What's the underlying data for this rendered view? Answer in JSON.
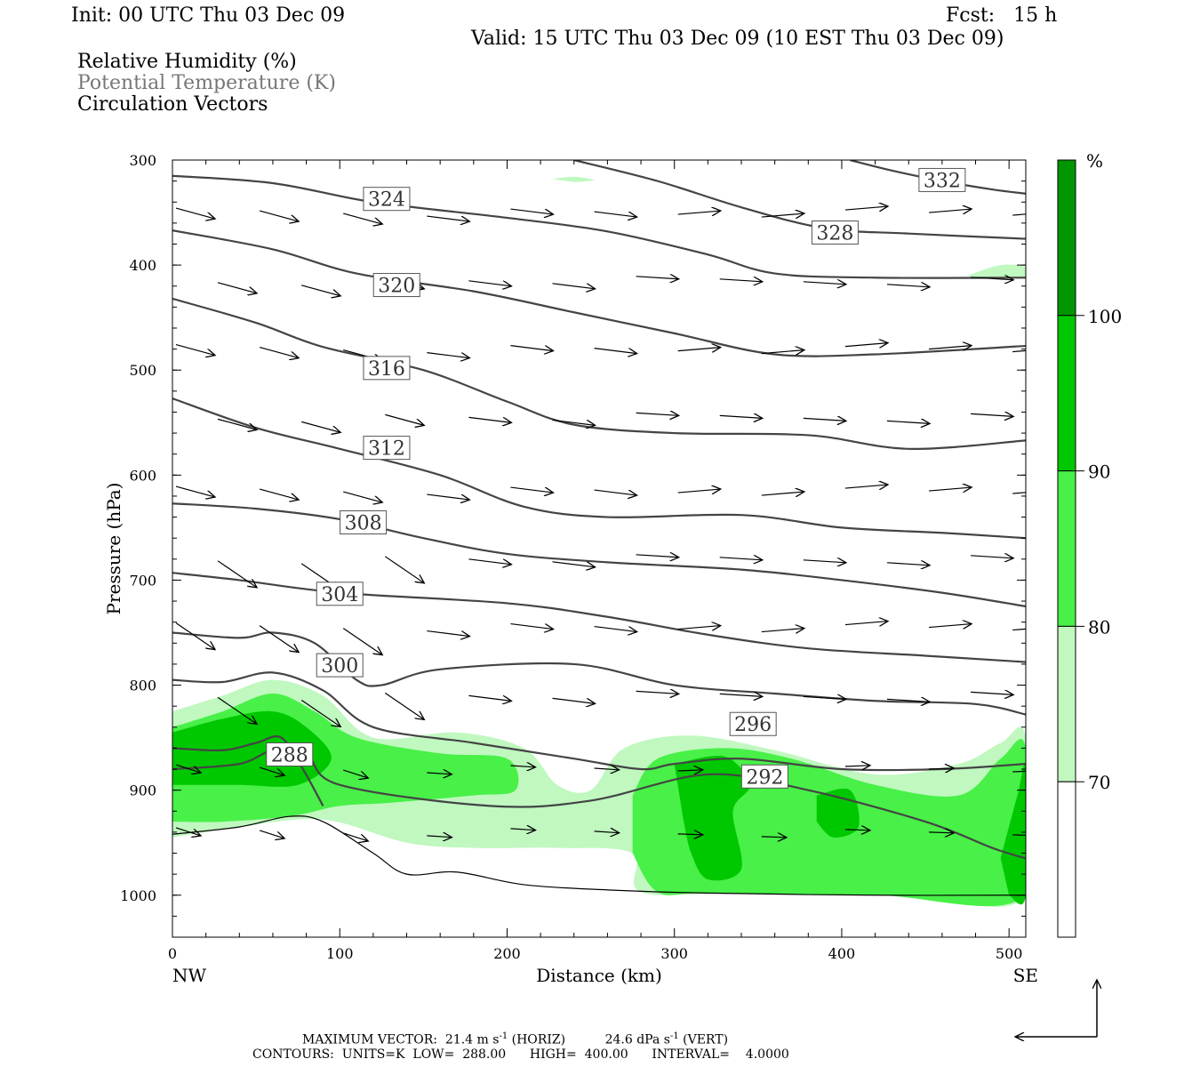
{
  "header": {
    "init": "Init: 00 UTC Thu 03 Dec 09",
    "fcst": "Fcst:   15 h",
    "valid": "Valid: 15 UTC Thu 03 Dec 09 (10 EST Thu 03 Dec 09)",
    "legend_lines": [
      "Relative Humidity (%)",
      "Potential Temperature (K)",
      "Circulation Vectors"
    ]
  },
  "footer": {
    "max_vector_label": "MAXIMUM VECTOR:",
    "max_horiz": "21.4 m s",
    "max_horiz_unit": "(HORIZ)",
    "max_vert": "24.6 dPa s",
    "max_vert_unit": "(VERT)",
    "exp": "-1",
    "contours": "CONTOURS:  UNITS=K  LOW=  288.00      HIGH=  400.00      INTERVAL=    4.0000"
  },
  "chart_data": {
    "type": "cross-section",
    "xlabel": "Distance (km)",
    "ylabel": "Pressure (hPa)",
    "xlim": [
      0,
      510
    ],
    "ylim": [
      300,
      1040
    ],
    "x_ticks": [
      0,
      100,
      200,
      300,
      400,
      500
    ],
    "y_ticks": [
      300,
      400,
      500,
      600,
      700,
      800,
      900,
      1000
    ],
    "x_end_labels": {
      "left": "NW",
      "right": "SE"
    },
    "colorbar": {
      "unit": "%",
      "levels": [
        70,
        80,
        90,
        100
      ],
      "colors": [
        "#ffffff",
        "#c0f8c0",
        "#48f048",
        "#00c800",
        "#009600"
      ]
    },
    "theta_contours": [
      {
        "value": 332,
        "label_at": [
          460,
          319
        ],
        "points": [
          [
            405,
            300
          ],
          [
            430,
            310
          ],
          [
            460,
            320
          ],
          [
            490,
            328
          ],
          [
            510,
            332
          ]
        ]
      },
      {
        "value": 328,
        "label_at": [
          396,
          369
        ],
        "points": [
          [
            240,
            300
          ],
          [
            290,
            320
          ],
          [
            340,
            345
          ],
          [
            390,
            365
          ],
          [
            440,
            370
          ],
          [
            510,
            375
          ]
        ]
      },
      {
        "value": 324,
        "label_at": [
          128,
          337
        ],
        "points": [
          [
            0,
            315
          ],
          [
            60,
            322
          ],
          [
            120,
            340
          ],
          [
            200,
            355
          ],
          [
            260,
            368
          ],
          [
            320,
            390
          ],
          [
            360,
            408
          ],
          [
            420,
            412
          ],
          [
            510,
            412
          ]
        ]
      },
      {
        "value": 320,
        "label_at": [
          134,
          419
        ],
        "points": [
          [
            0,
            367
          ],
          [
            60,
            385
          ],
          [
            110,
            408
          ],
          [
            180,
            425
          ],
          [
            240,
            445
          ],
          [
            300,
            465
          ],
          [
            360,
            485
          ],
          [
            420,
            485
          ],
          [
            510,
            477
          ]
        ]
      },
      {
        "value": 316,
        "label_at": [
          128,
          498
        ],
        "points": [
          [
            0,
            432
          ],
          [
            50,
            455
          ],
          [
            90,
            478
          ],
          [
            150,
            500
          ],
          [
            200,
            530
          ],
          [
            240,
            552
          ],
          [
            300,
            560
          ],
          [
            380,
            562
          ],
          [
            440,
            575
          ],
          [
            510,
            567
          ]
        ]
      },
      {
        "value": 312,
        "label_at": [
          128,
          574
        ],
        "points": [
          [
            0,
            527
          ],
          [
            50,
            555
          ],
          [
            100,
            575
          ],
          [
            160,
            600
          ],
          [
            210,
            630
          ],
          [
            260,
            640
          ],
          [
            340,
            638
          ],
          [
            400,
            650
          ],
          [
            460,
            655
          ],
          [
            510,
            660
          ]
        ]
      },
      {
        "value": 308,
        "label_at": [
          114,
          645
        ],
        "points": [
          [
            0,
            627
          ],
          [
            50,
            632
          ],
          [
            100,
            642
          ],
          [
            150,
            660
          ],
          [
            200,
            675
          ],
          [
            260,
            683
          ],
          [
            340,
            690
          ],
          [
            400,
            700
          ],
          [
            460,
            712
          ],
          [
            510,
            725
          ]
        ]
      },
      {
        "value": 304,
        "label_at": [
          100,
          713
        ],
        "points": [
          [
            0,
            693
          ],
          [
            40,
            700
          ],
          [
            100,
            712
          ],
          [
            200,
            722
          ],
          [
            260,
            735
          ],
          [
            320,
            752
          ],
          [
            380,
            765
          ],
          [
            450,
            772
          ],
          [
            510,
            778
          ]
        ]
      },
      {
        "value": 300,
        "label_at": [
          100,
          781
        ],
        "points": [
          [
            0,
            750
          ],
          [
            40,
            755
          ],
          [
            60,
            750
          ],
          [
            85,
            760
          ],
          [
            110,
            795
          ],
          [
            125,
            800
          ],
          [
            160,
            785
          ],
          [
            240,
            780
          ],
          [
            300,
            800
          ],
          [
            360,
            808
          ],
          [
            420,
            815
          ],
          [
            480,
            818
          ],
          [
            510,
            828
          ]
        ]
      },
      {
        "value": 296,
        "label_at": [
          347,
          837
        ],
        "points": [
          [
            0,
            795
          ],
          [
            30,
            797
          ],
          [
            60,
            788
          ],
          [
            90,
            805
          ],
          [
            120,
            840
          ],
          [
            180,
            855
          ],
          [
            240,
            870
          ],
          [
            280,
            880
          ],
          [
            300,
            875
          ],
          [
            340,
            870
          ],
          [
            400,
            880
          ],
          [
            460,
            880
          ],
          [
            510,
            875
          ]
        ]
      },
      {
        "value": 292,
        "label_at": [
          354,
          887
        ],
        "points": [
          [
            0,
            880
          ],
          [
            40,
            875
          ],
          [
            60,
            862
          ],
          [
            80,
            865
          ],
          [
            100,
            895
          ],
          [
            190,
            915
          ],
          [
            250,
            910
          ],
          [
            320,
            885
          ],
          [
            380,
            900
          ],
          [
            450,
            930
          ],
          [
            490,
            955
          ],
          [
            510,
            965
          ]
        ]
      },
      {
        "value": 288,
        "label_at": [
          70,
          866
        ],
        "points": [
          [
            0,
            860
          ],
          [
            30,
            862
          ],
          [
            50,
            855
          ],
          [
            65,
            850
          ],
          [
            78,
            880
          ],
          [
            90,
            915
          ]
        ]
      }
    ]
  }
}
